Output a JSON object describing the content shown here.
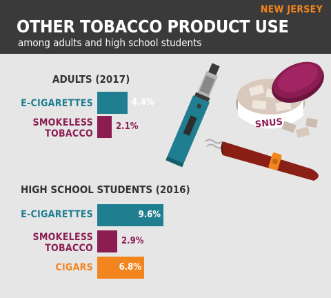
{
  "header": {
    "state": "NEW JERSEY",
    "title": "OTHER TOBACCO PRODUCT USE",
    "subtitle": "among adults and high school students"
  },
  "illustration": {
    "snus_label": "SNUS"
  },
  "colors": {
    "teal": "#1f7e90",
    "maroon": "#8c1d52",
    "orange": "#f3851f"
  },
  "chart_data": [
    {
      "type": "bar",
      "title": "ADULTS (2017)",
      "categories": [
        "E-CIGARETTES",
        "SMOKELESS TOBACCO"
      ],
      "values": [
        4.4,
        2.1
      ],
      "value_labels": [
        "4.4%",
        "2.1%"
      ],
      "colors": [
        "#1f7e90",
        "#8c1d52"
      ]
    },
    {
      "type": "bar",
      "title": "HIGH SCHOOL STUDENTS (2016)",
      "categories": [
        "E-CIGARETTES",
        "SMOKELESS TOBACCO",
        "CIGARS"
      ],
      "values": [
        9.6,
        2.9,
        6.8
      ],
      "value_labels": [
        "9.6%",
        "2.9%",
        "6.8%"
      ],
      "colors": [
        "#1f7e90",
        "#8c1d52",
        "#f3851f"
      ]
    }
  ]
}
